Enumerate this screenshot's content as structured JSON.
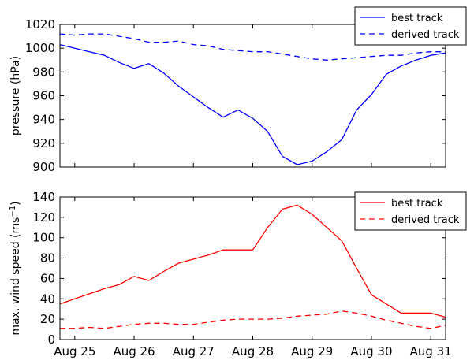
{
  "chart_data": [
    {
      "type": "line",
      "ylabel": "pressure (hPa)",
      "ylim": [
        900,
        1020
      ],
      "yticks": [
        900,
        920,
        940,
        960,
        980,
        1000,
        1020
      ],
      "xlim": [
        24.75,
        31.25
      ],
      "xticks": [
        25,
        26,
        27,
        28,
        29,
        30,
        31
      ],
      "xticklabels": [],
      "legend_position": "top-right",
      "grid": false,
      "series": [
        {
          "name": "best track",
          "color": "#0000ff",
          "style": "solid",
          "x": [
            24.75,
            25.0,
            25.25,
            25.5,
            25.75,
            26.0,
            26.25,
            26.5,
            26.75,
            27.0,
            27.25,
            27.5,
            27.75,
            28.0,
            28.25,
            28.5,
            28.75,
            29.0,
            29.25,
            29.5,
            29.75,
            30.0,
            30.25,
            30.5,
            30.75,
            31.0,
            31.25
          ],
          "y": [
            1003,
            1000,
            997,
            994,
            988,
            983,
            987,
            979,
            968,
            959,
            950,
            942,
            948,
            941,
            930,
            909,
            902,
            905,
            913,
            923,
            948,
            961,
            978,
            985,
            990,
            994,
            996
          ]
        },
        {
          "name": "derived track",
          "color": "#0000ff",
          "style": "dashed",
          "x": [
            24.75,
            25.0,
            25.25,
            25.5,
            25.75,
            26.0,
            26.25,
            26.5,
            26.75,
            27.0,
            27.25,
            27.5,
            27.75,
            28.0,
            28.25,
            28.5,
            28.75,
            29.0,
            29.25,
            29.5,
            29.75,
            30.0,
            30.25,
            30.5,
            30.75,
            31.0,
            31.25
          ],
          "y": [
            1012,
            1011,
            1012,
            1012,
            1010,
            1008,
            1005,
            1005,
            1006,
            1003,
            1002,
            999,
            998,
            997,
            997,
            995,
            993,
            991,
            990,
            991,
            992,
            993,
            994,
            994,
            996,
            997,
            997
          ]
        }
      ]
    },
    {
      "type": "line",
      "ylabel": "max. wind speed (ms",
      "ylabel_sup": "−1",
      "ylabel_end": ")",
      "ylim": [
        0,
        140
      ],
      "yticks": [
        0,
        20,
        40,
        60,
        80,
        100,
        120,
        140
      ],
      "xlim": [
        24.75,
        31.25
      ],
      "xticks": [
        25,
        26,
        27,
        28,
        29,
        30,
        31
      ],
      "xticklabels": [
        "Aug 25",
        "Aug 26",
        "Aug 27",
        "Aug 28",
        "Aug 29",
        "Aug 30",
        "Aug 31"
      ],
      "legend_position": "top-right",
      "grid": false,
      "series": [
        {
          "name": "best track",
          "color": "#ff0000",
          "style": "solid",
          "x": [
            24.75,
            25.0,
            25.25,
            25.5,
            25.75,
            26.0,
            26.25,
            26.5,
            26.75,
            27.0,
            27.25,
            27.5,
            27.75,
            28.0,
            28.25,
            28.5,
            28.75,
            29.0,
            29.25,
            29.5,
            29.75,
            30.0,
            30.25,
            30.5,
            30.75,
            31.0,
            31.25
          ],
          "y": [
            35,
            40,
            45,
            50,
            54,
            62,
            58,
            67,
            75,
            79,
            83,
            88,
            88,
            88,
            110,
            128,
            132,
            123,
            110,
            97,
            70,
            44,
            35,
            26,
            26,
            26,
            22
          ]
        },
        {
          "name": "derived track",
          "color": "#ff0000",
          "style": "dashed",
          "x": [
            24.75,
            25.0,
            25.25,
            25.5,
            25.75,
            26.0,
            26.25,
            26.5,
            26.75,
            27.0,
            27.25,
            27.5,
            27.75,
            28.0,
            28.25,
            28.5,
            28.75,
            29.0,
            29.25,
            29.5,
            29.75,
            30.0,
            30.25,
            30.5,
            30.75,
            31.0,
            31.25
          ],
          "y": [
            11,
            11,
            12,
            11,
            13,
            15,
            16,
            16,
            15,
            15,
            17,
            19,
            20,
            20,
            20,
            21,
            23,
            24,
            25,
            28,
            26,
            23,
            19,
            16,
            13,
            11,
            14
          ]
        }
      ]
    }
  ]
}
